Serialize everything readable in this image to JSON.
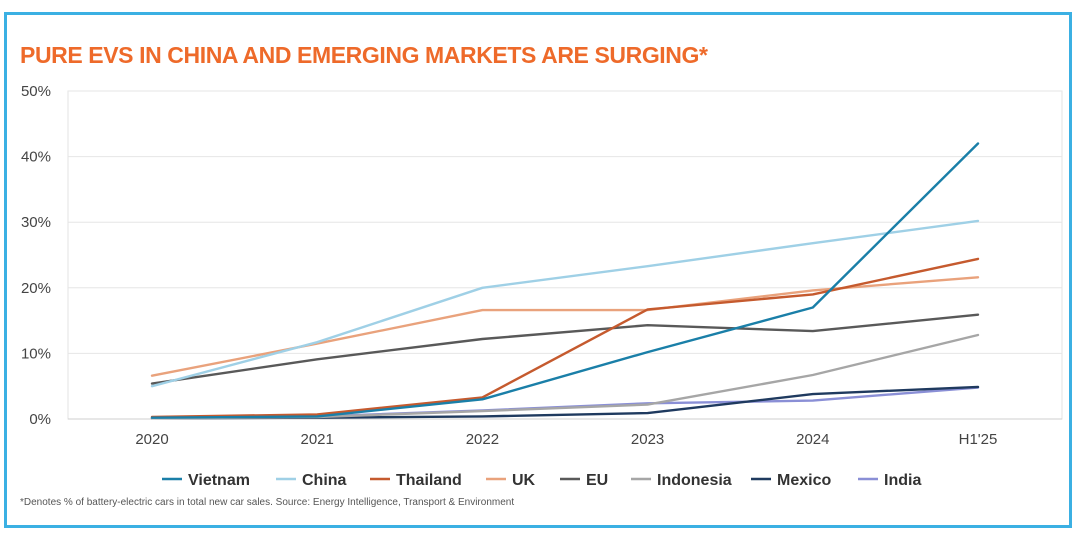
{
  "chart_data": {
    "type": "line",
    "title": "PURE EVS IN CHINA AND EMERGING MARKETS ARE SURGING*",
    "xlabel": "",
    "ylabel": "",
    "categories": [
      "2020",
      "2021",
      "2022",
      "2023",
      "2024",
      "H1'25"
    ],
    "ylim": [
      0,
      50
    ],
    "y_ticks": [
      "0%",
      "10%",
      "20%",
      "30%",
      "40%",
      "50%"
    ],
    "y_tick_values": [
      0,
      10,
      20,
      30,
      40,
      50
    ],
    "grid": true,
    "legend_position": "bottom",
    "series": [
      {
        "name": "Vietnam",
        "color": "#1a7fa8",
        "values": [
          0.2,
          0.4,
          3.0,
          10.2,
          17.0,
          42.0
        ]
      },
      {
        "name": "China",
        "color": "#9fd0e6",
        "values": [
          5.0,
          11.7,
          20.0,
          23.3,
          26.8,
          30.2
        ]
      },
      {
        "name": "Thailand",
        "color": "#c55a2e",
        "values": [
          0.3,
          0.7,
          3.3,
          16.7,
          19.0,
          24.4
        ]
      },
      {
        "name": "UK",
        "color": "#e9a27c",
        "values": [
          6.6,
          11.5,
          16.6,
          16.6,
          19.6,
          21.6
        ]
      },
      {
        "name": "EU",
        "color": "#595959",
        "values": [
          5.4,
          9.1,
          12.2,
          14.3,
          13.4,
          15.9
        ]
      },
      {
        "name": "Indonesia",
        "color": "#a6a6a6",
        "values": [
          0.1,
          0.3,
          1.2,
          2.2,
          6.7,
          12.8
        ]
      },
      {
        "name": "Mexico",
        "color": "#1f3a5f",
        "values": [
          0.1,
          0.2,
          0.4,
          0.9,
          3.8,
          4.9
        ]
      },
      {
        "name": "India",
        "color": "#8a8fd6",
        "values": [
          0.2,
          0.4,
          1.3,
          2.4,
          2.8,
          4.8
        ]
      }
    ]
  },
  "footnote": "*Denotes % of battery-electric cars in total new car sales. Source: Energy Intelligence, Transport & Environment"
}
